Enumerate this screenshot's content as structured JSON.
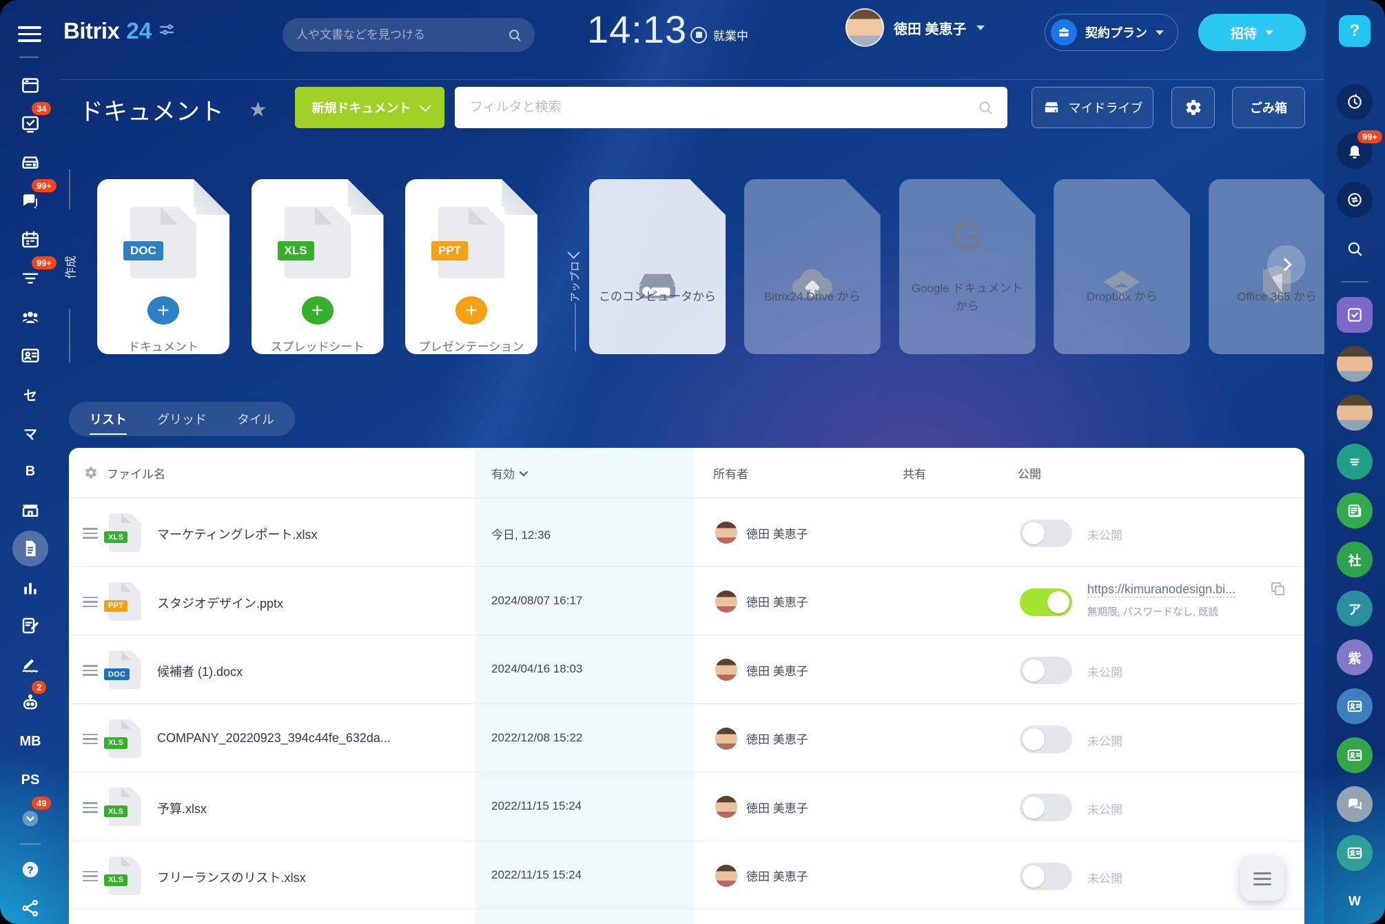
{
  "topbar": {
    "logo": "Bitrix",
    "logo_number": "24",
    "search_placeholder": "人や文書などを見つける",
    "clock": "14:13",
    "status_label": "就業中",
    "user_name": "徳田 美恵子",
    "plan_label": "契約プラン",
    "invite_label": "招待",
    "help_label": "?"
  },
  "page": {
    "title": "ドキュメント",
    "star_icon": "★",
    "new_document_label": "新規ドキュメント",
    "filter_placeholder": "フィルタと検索",
    "my_drive_label": "マイドライブ",
    "trash_label": "ごみ箱"
  },
  "create_section": {
    "label": "作成",
    "cards": [
      {
        "badge": "DOC",
        "color": "#2e80c4",
        "label": "ドキュメント"
      },
      {
        "badge": "XLS",
        "color": "#35b02a",
        "label": "スプレッドシート"
      },
      {
        "badge": "PPT",
        "color": "#f5a015",
        "label": "プレゼンテーション"
      }
    ]
  },
  "upload_section": {
    "label": "アップロード",
    "cards": [
      {
        "icon": "computer-drive-icon",
        "label": "このコンピュータから",
        "solid": true
      },
      {
        "icon": "cloud-upload-icon",
        "label": "Bitrix24.Drive から"
      },
      {
        "icon": "google-icon",
        "label": "Google ドキュメントから"
      },
      {
        "icon": "dropbox-icon",
        "label": "Dropbox から"
      },
      {
        "icon": "office365-icon",
        "label": "Office 365 から"
      }
    ]
  },
  "view_tabs": [
    {
      "label": "リスト",
      "active": true
    },
    {
      "label": "グリッド",
      "active": false
    },
    {
      "label": "タイル",
      "active": false
    }
  ],
  "table": {
    "columns": [
      "ファイル名",
      "有効",
      "所有者",
      "共有",
      "公開"
    ],
    "not_public_label": "未公開",
    "rows": [
      {
        "type": "XLS",
        "color": "#35b02a",
        "name": "マーケティングレポート.xlsx",
        "date": "今日, 12:36",
        "owner": "徳田 美恵子",
        "toggle_on": false,
        "public": "未公開"
      },
      {
        "type": "PPT",
        "color": "#f5a015",
        "name": "スタジオデザイン.pptx",
        "date": "2024/08/07 16:17",
        "owner": "徳田 美恵子",
        "toggle_on": true,
        "public_link": "https://kimuranodesign.bi...",
        "public_meta": "無期限, パスワードなし, 既読"
      },
      {
        "type": "DOC",
        "color": "#1f6fc0",
        "name": "候補者 (1).docx",
        "date": "2024/04/16 18:03",
        "owner": "徳田 美恵子",
        "toggle_on": false,
        "public": "未公開"
      },
      {
        "type": "XLS",
        "color": "#35b02a",
        "name": "COMPANY_20220923_394c44fe_632da...",
        "date": "2022/12/08 15:22",
        "owner": "徳田 美恵子",
        "toggle_on": false,
        "public": "未公開"
      },
      {
        "type": "XLS",
        "color": "#35b02a",
        "name": "予算.xlsx",
        "date": "2022/11/15 15:24",
        "owner": "徳田 美恵子",
        "toggle_on": false,
        "public": "未公開"
      },
      {
        "type": "XLS",
        "color": "#35b02a",
        "name": "フリーランスのリスト.xlsx",
        "date": "2022/11/15 15:24",
        "owner": "徳田 美恵子",
        "toggle_on": false,
        "public": "未公開"
      }
    ]
  },
  "left_sidebar": {
    "items": [
      {
        "icon": "live-feed-icon"
      },
      {
        "icon": "tasks-icon",
        "badge": "34"
      },
      {
        "icon": "drive-icon"
      },
      {
        "icon": "messenger-icon",
        "badge": "99+"
      },
      {
        "icon": "calendar-icon"
      },
      {
        "icon": "feed-icon",
        "badge": "99+"
      },
      {
        "icon": "groups-icon"
      },
      {
        "icon": "contacts-icon"
      },
      {
        "text": "セ"
      },
      {
        "text": "マ"
      },
      {
        "text": "B"
      },
      {
        "icon": "market-icon"
      },
      {
        "icon": "documents-icon",
        "active": true
      },
      {
        "icon": "analytics-icon"
      },
      {
        "icon": "crm-icon"
      },
      {
        "icon": "sign-icon"
      },
      {
        "icon": "ai-icon",
        "badge": "2"
      },
      {
        "text": "MB"
      },
      {
        "text": "PS"
      },
      {
        "icon": "more-icon",
        "badge": "49"
      },
      {
        "divider": true
      },
      {
        "icon": "help-icon"
      },
      {
        "icon": "share-icon"
      }
    ]
  },
  "right_sidebar": {
    "help_label": "?",
    "items": [
      {
        "icon": "history-icon",
        "bg": "rgba(10,28,74,0.55)"
      },
      {
        "icon": "bell-icon",
        "bg": "rgba(10,28,74,0.55)",
        "badge": "99+"
      },
      {
        "icon": "chat-sync-icon",
        "bg": "rgba(10,28,74,0.55)"
      },
      {
        "icon": "search-icon",
        "bg": "transparent"
      },
      {
        "divider": true
      },
      {
        "icon": "planner-icon",
        "bg": "#7b68c8",
        "square": true
      },
      {
        "icon": "avatar",
        "avatar": 1
      },
      {
        "icon": "avatar",
        "avatar": 2
      },
      {
        "icon": "lines-icon",
        "bg": "#1f9f85"
      },
      {
        "icon": "news-icon",
        "bg": "#31a94d"
      },
      {
        "text": "社",
        "bg": "#2da24c"
      },
      {
        "text": "ア",
        "bg": "#2b8fa0"
      },
      {
        "text": "紫",
        "bg": "#8377c7"
      },
      {
        "icon": "card-icon",
        "bg": "#3c7fc1"
      },
      {
        "icon": "card-icon",
        "bg": "#33a648"
      },
      {
        "icon": "chats-icon",
        "bg": "#93a3b0"
      },
      {
        "icon": "card-icon",
        "bg": "#2fa097"
      },
      {
        "text": "W",
        "bg": "transparent"
      }
    ]
  },
  "colors": {
    "accent_green": "#9fd026",
    "accent_cyan": "#2bc7f3",
    "badge_red": "#f2461d",
    "toggle_on": "#a3e42f",
    "active_column_tint": "#edf9fb",
    "background_blue": "#11418f"
  }
}
